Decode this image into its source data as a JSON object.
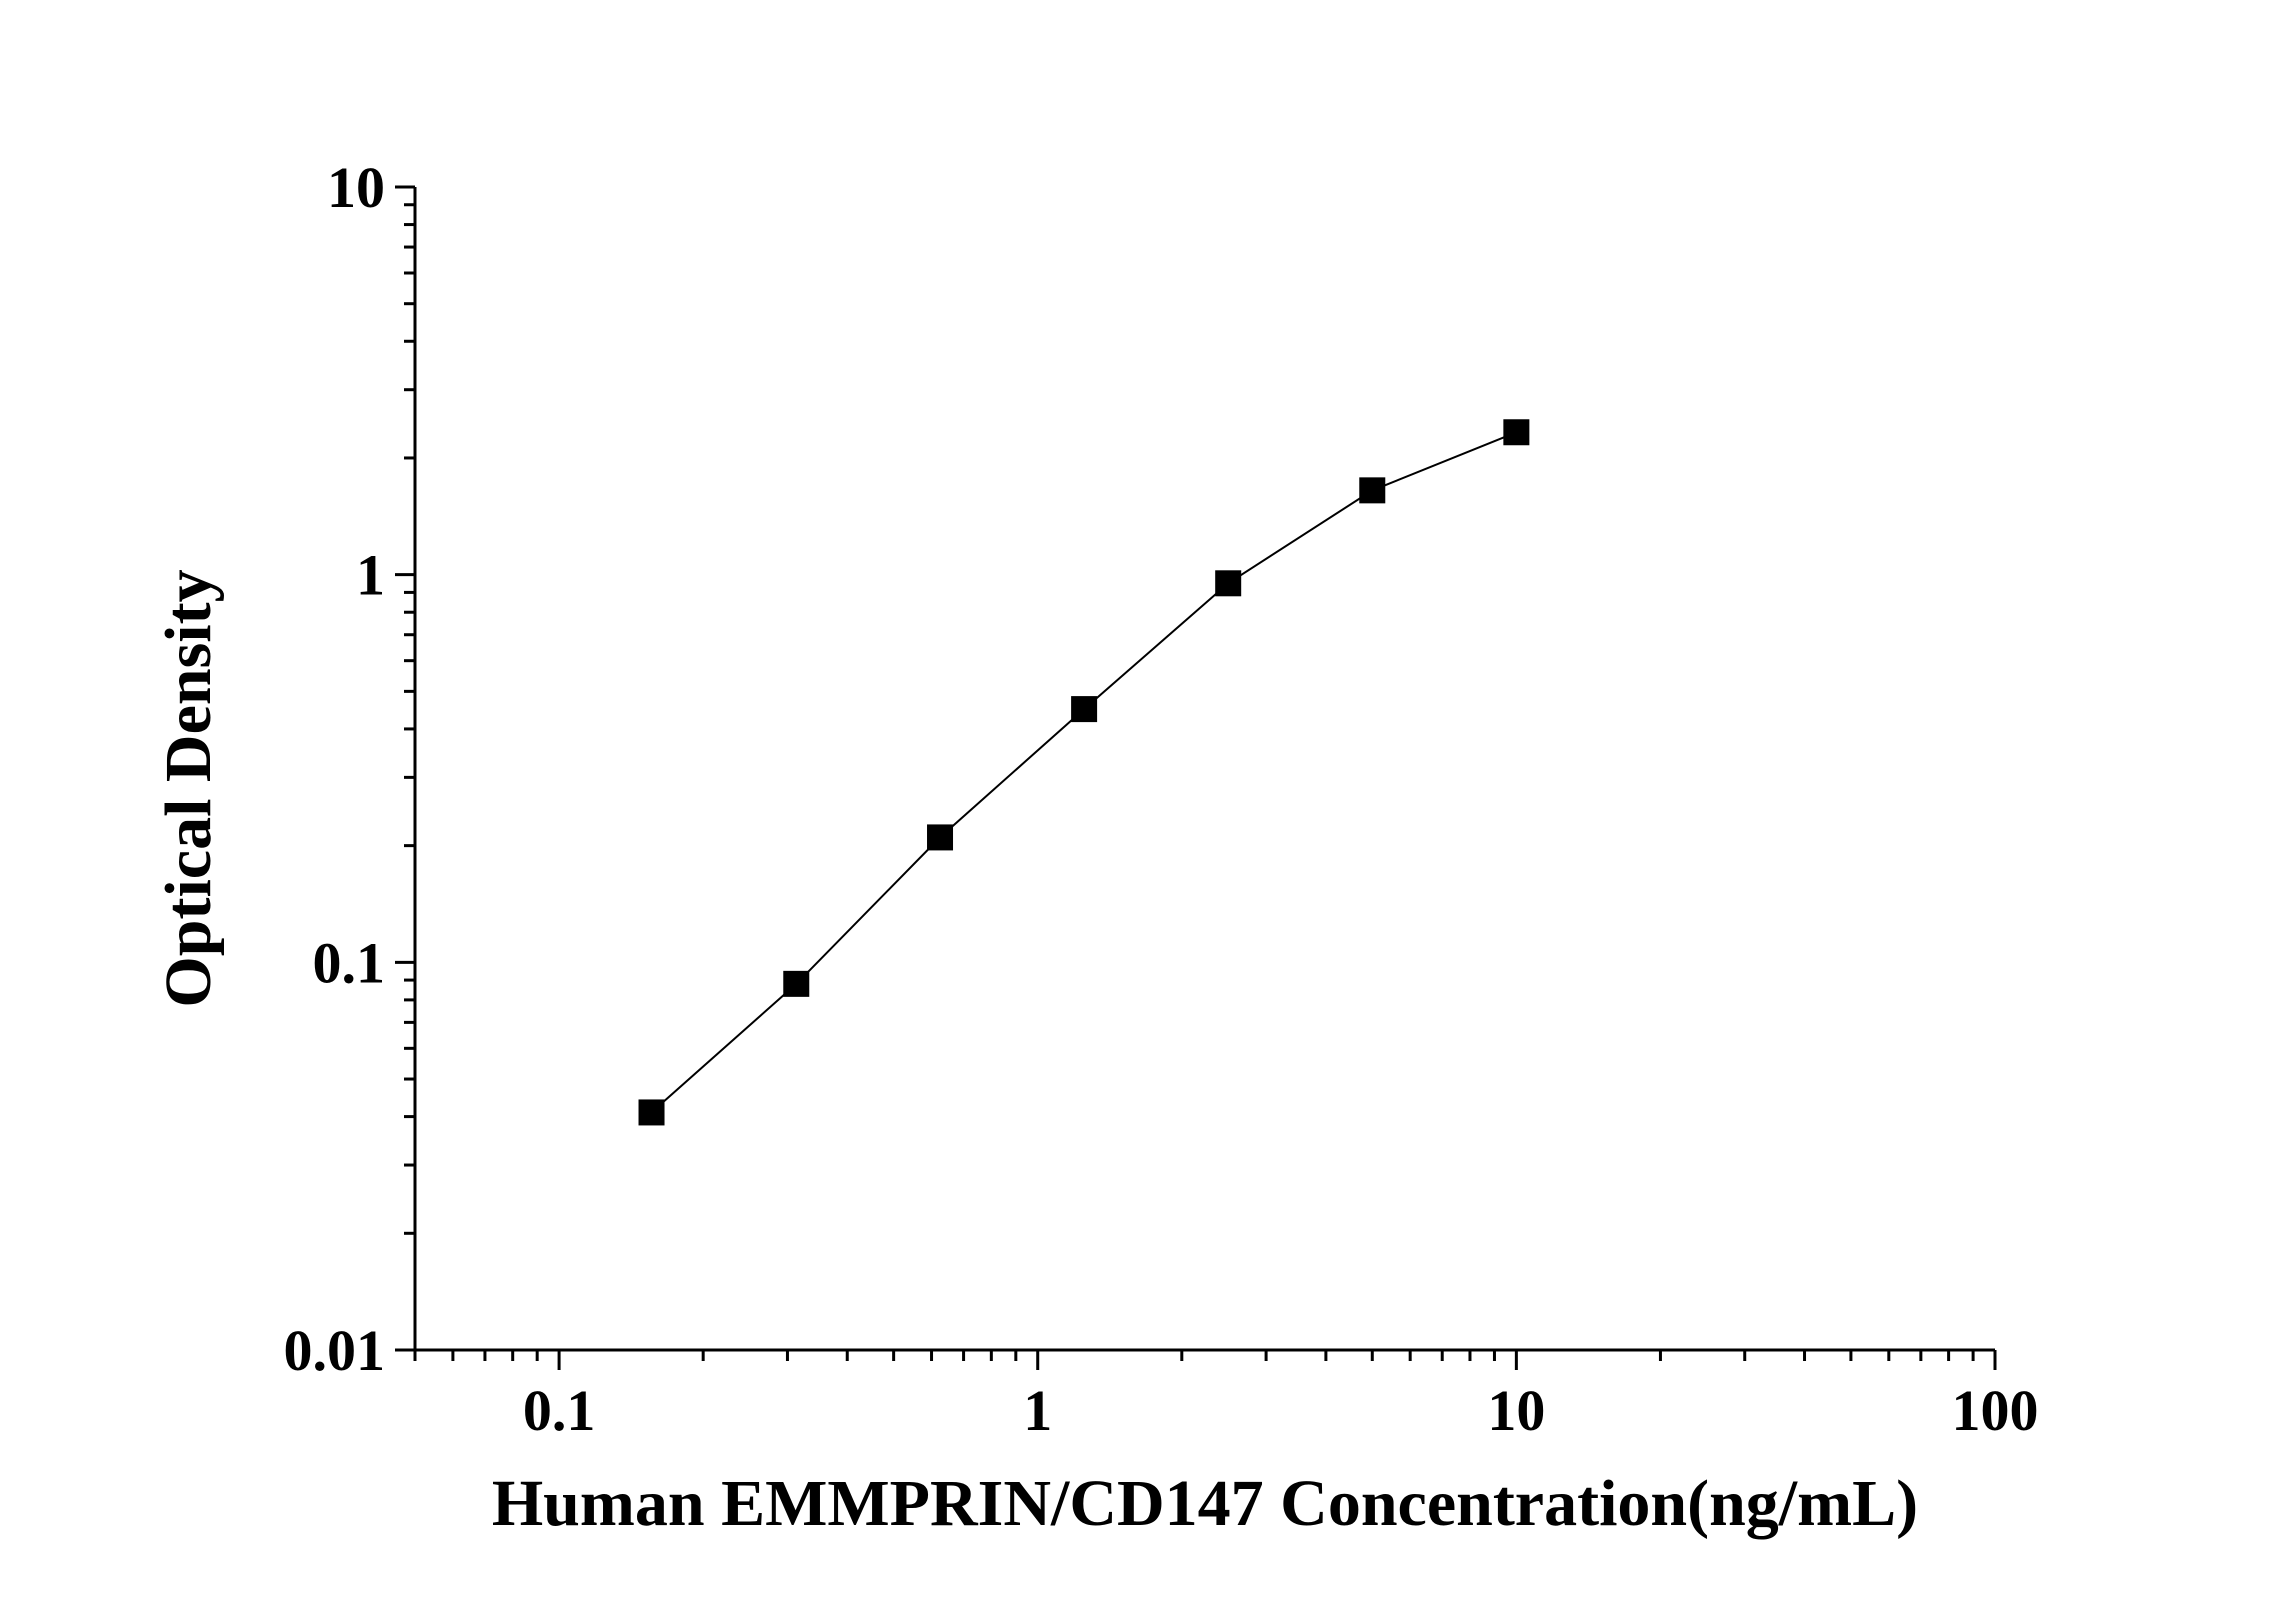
{
  "chart_data": {
    "type": "line",
    "title": "",
    "xlabel": "Human EMMPRIN/CD147 Concentration(ng/mL)",
    "ylabel": "Optical Density",
    "x_scale": "log",
    "y_scale": "log",
    "xlim": [
      0.05,
      100
    ],
    "ylim": [
      0.01,
      10
    ],
    "x_ticks": [
      0.1,
      1,
      10,
      100
    ],
    "x_tick_labels": [
      "0.1",
      "1",
      "10",
      "100"
    ],
    "y_ticks": [
      0.01,
      0.1,
      1,
      10
    ],
    "y_tick_labels": [
      "0.01",
      "0.1",
      "1",
      "10"
    ],
    "grid": false,
    "legend": "none",
    "marker": "square",
    "color": "#000000",
    "series": [
      {
        "x": [
          0.156,
          0.313,
          0.625,
          1.25,
          2.5,
          5,
          10
        ],
        "y": [
          0.041,
          0.088,
          0.21,
          0.45,
          0.95,
          1.65,
          2.33
        ]
      }
    ]
  }
}
